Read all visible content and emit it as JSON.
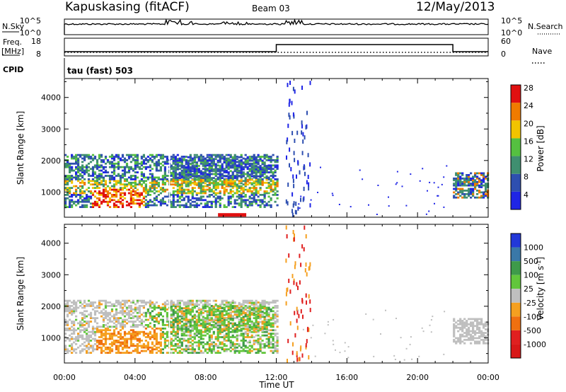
{
  "header": {
    "station": "Kapuskasing (fitACF)",
    "beam": "Beam 03",
    "date": "12/May/2013"
  },
  "strips": {
    "nsky_label": "N.Sky",
    "nsky_ticks": [
      "10^5",
      "10^0"
    ],
    "nsearch_label": "N.Search",
    "nsearch_ticks": [
      "10^5",
      "10^0"
    ],
    "freq_label": "Freq.",
    "freq_unit": "[MHz]",
    "freq_ticks": [
      "18",
      "8"
    ],
    "nave_label": "Nave",
    "nave_ticks": [
      "60",
      "0"
    ],
    "cpid_label": "CPID",
    "cpid_value": "tau (fast) 503"
  },
  "chart_data": [
    {
      "type": "heatmap",
      "name": "power",
      "ylabel": "Slant Range [km]",
      "ylim": [
        200,
        4600
      ],
      "yticks": [
        "1000",
        "2000",
        "3000",
        "4000"
      ],
      "xlim": [
        "00:00",
        "24:00"
      ],
      "colorbar_label": "Power [dB]",
      "colorbar_ticks": [
        "4",
        "8",
        "12",
        "16",
        "20",
        "24",
        "28"
      ],
      "colors": [
        "#1f25e6",
        "#2e4fb0",
        "#3f8f70",
        "#55c040",
        "#f2c400",
        "#f07b00",
        "#e01010"
      ]
    },
    {
      "type": "heatmap",
      "name": "velocity",
      "ylabel": "Slant Range [km]",
      "ylim": [
        200,
        4600
      ],
      "yticks": [
        "1000",
        "2000",
        "3000",
        "4000"
      ],
      "xlim": [
        "00:00",
        "24:00"
      ],
      "xlabel": "Time UT",
      "xticks": [
        "00:00",
        "04:00",
        "08:00",
        "12:00",
        "16:00",
        "20:00",
        "00:00"
      ],
      "colorbar_label": "Velocity [m s",
      "colorbar_label_sup": "-1",
      "colorbar_label_end": "]",
      "colorbar_ticks": [
        "1000",
        "500",
        "100",
        "25",
        "-25",
        "-100",
        "-500",
        "-1000"
      ],
      "colors": [
        "#2238d8",
        "#3a78a8",
        "#3e9a4a",
        "#62c63c",
        "#bfbfbf",
        "#f5a020",
        "#f07010",
        "#e02020",
        "#d81818"
      ]
    }
  ]
}
